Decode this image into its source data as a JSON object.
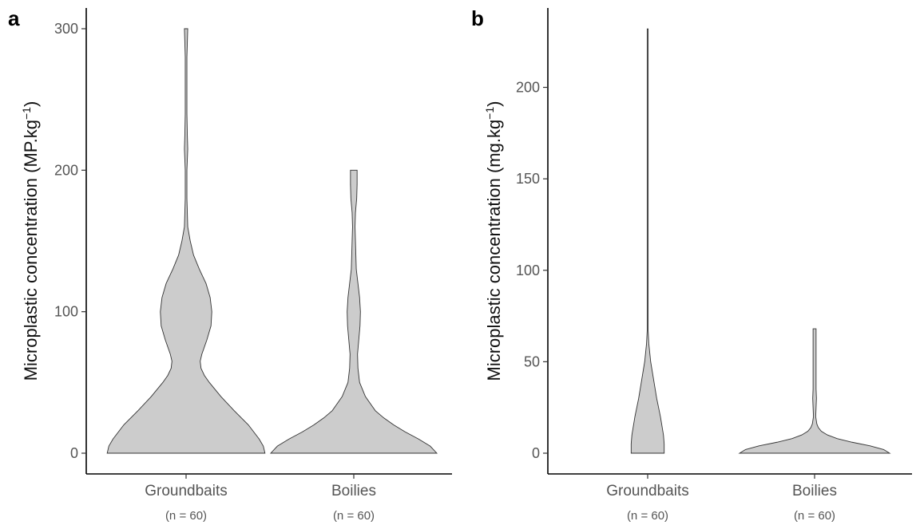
{
  "chart_data": [
    {
      "type": "violin",
      "panel_label": "a",
      "ylabel_main": "Microplastic concentration  (MP.kg",
      "ylabel_sup": "−1",
      "ylabel_close": ")",
      "ylim": [
        0,
        300
      ],
      "yticks": [
        "0",
        "100",
        "200",
        "300"
      ],
      "ytick_values": [
        0,
        100,
        200,
        300
      ],
      "categories": [
        "Groundbaits",
        "Boilies"
      ],
      "category_notes": [
        "(n = 60)",
        "(n = 60)"
      ],
      "violins": [
        {
          "category": "Groundbaits",
          "fill": "#cccccc",
          "density": [
            [
              0,
              0.95
            ],
            [
              5,
              0.93
            ],
            [
              10,
              0.88
            ],
            [
              20,
              0.75
            ],
            [
              30,
              0.58
            ],
            [
              40,
              0.42
            ],
            [
              50,
              0.28
            ],
            [
              55,
              0.22
            ],
            [
              60,
              0.18
            ],
            [
              65,
              0.17
            ],
            [
              70,
              0.19
            ],
            [
              80,
              0.25
            ],
            [
              90,
              0.3
            ],
            [
              100,
              0.31
            ],
            [
              110,
              0.29
            ],
            [
              120,
              0.24
            ],
            [
              130,
              0.16
            ],
            [
              140,
              0.09
            ],
            [
              150,
              0.05
            ],
            [
              160,
              0.02
            ],
            [
              180,
              0.01
            ],
            [
              200,
              0.01
            ],
            [
              215,
              0.02
            ],
            [
              225,
              0.015
            ],
            [
              240,
              0.01
            ],
            [
              260,
              0.01
            ],
            [
              280,
              0.01
            ],
            [
              300,
              0.02
            ]
          ]
        },
        {
          "category": "Boilies",
          "fill": "#cccccc",
          "density": [
            [
              0,
              1.0
            ],
            [
              5,
              0.92
            ],
            [
              10,
              0.78
            ],
            [
              15,
              0.62
            ],
            [
              20,
              0.48
            ],
            [
              25,
              0.36
            ],
            [
              30,
              0.26
            ],
            [
              40,
              0.14
            ],
            [
              50,
              0.07
            ],
            [
              60,
              0.05
            ],
            [
              70,
              0.045
            ],
            [
              80,
              0.06
            ],
            [
              90,
              0.075
            ],
            [
              100,
              0.08
            ],
            [
              110,
              0.07
            ],
            [
              120,
              0.05
            ],
            [
              130,
              0.03
            ],
            [
              140,
              0.025
            ],
            [
              150,
              0.02
            ],
            [
              160,
              0.015
            ],
            [
              170,
              0.02
            ],
            [
              180,
              0.035
            ],
            [
              190,
              0.04
            ],
            [
              200,
              0.04
            ]
          ]
        }
      ]
    },
    {
      "type": "violin",
      "panel_label": "b",
      "ylabel_main": "Microplastic concentration  (mg.kg",
      "ylabel_sup": "−1",
      "ylabel_close": ")",
      "ylim": [
        0,
        240
      ],
      "yticks": [
        "0",
        "50",
        "100",
        "150",
        "200"
      ],
      "ytick_values": [
        0,
        50,
        100,
        150,
        200
      ],
      "categories": [
        "Groundbaits",
        "Boilies"
      ],
      "category_notes": [
        "(n = 60)",
        "(n = 60)"
      ],
      "violins": [
        {
          "category": "Groundbaits",
          "fill": "#cccccc",
          "density": [
            [
              0,
              0.22
            ],
            [
              5,
              0.22
            ],
            [
              10,
              0.21
            ],
            [
              20,
              0.17
            ],
            [
              30,
              0.12
            ],
            [
              40,
              0.08
            ],
            [
              50,
              0.04
            ],
            [
              60,
              0.015
            ],
            [
              67,
              0.004
            ],
            [
              80,
              0.002
            ],
            [
              120,
              0.002
            ],
            [
              170,
              0.002
            ],
            [
              172,
              0.006
            ],
            [
              200,
              0.006
            ],
            [
              232,
              0.006
            ]
          ]
        },
        {
          "category": "Boilies",
          "fill": "#cccccc",
          "density": [
            [
              0,
              1.0
            ],
            [
              2,
              0.92
            ],
            [
              4,
              0.74
            ],
            [
              6,
              0.5
            ],
            [
              8,
              0.3
            ],
            [
              10,
              0.17
            ],
            [
              12,
              0.09
            ],
            [
              14,
              0.05
            ],
            [
              16,
              0.03
            ],
            [
              20,
              0.015
            ],
            [
              25,
              0.02
            ],
            [
              30,
              0.025
            ],
            [
              35,
              0.02
            ],
            [
              40,
              0.02
            ],
            [
              45,
              0.02
            ],
            [
              50,
              0.02
            ],
            [
              55,
              0.02
            ],
            [
              60,
              0.02
            ],
            [
              65,
              0.02
            ],
            [
              68,
              0.02
            ]
          ]
        }
      ]
    }
  ]
}
